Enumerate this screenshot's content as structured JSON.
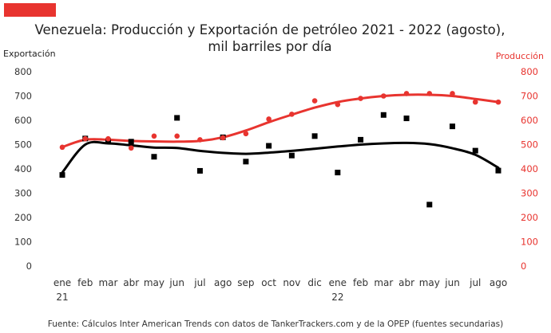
{
  "chart_data": {
    "type": "line",
    "title": "Venezuela: Producción y Exportación de petróleo 2021 - 2022 (agosto),",
    "subtitle": "mil barriles por día",
    "ylabel_left": "Exportación",
    "ylabel_right": "Producción",
    "ylim": [
      0,
      800
    ],
    "yticks": [
      0,
      100,
      200,
      300,
      400,
      500,
      600,
      700,
      800
    ],
    "categories": [
      "ene",
      "feb",
      "mar",
      "abr",
      "may",
      "jun",
      "jul",
      "ago",
      "sep",
      "oct",
      "nov",
      "dic",
      "ene",
      "feb",
      "mar",
      "abr",
      "may",
      "jun",
      "jul",
      "ago"
    ],
    "year_labels": [
      {
        "index": 0,
        "label": "21"
      },
      {
        "index": 12,
        "label": "22"
      }
    ],
    "series": [
      {
        "name": "Exportación",
        "axis": "left",
        "color": "#000000",
        "marker": "square",
        "values": [
          375,
          525,
          515,
          512,
          450,
          610,
          392,
          530,
          430,
          495,
          455,
          535,
          385,
          520,
          622,
          608,
          253,
          575,
          475,
          393
        ],
        "trend": [
          385,
          500,
          505,
          497,
          488,
          486,
          474,
          466,
          462,
          467,
          474,
          483,
          492,
          500,
          505,
          507,
          502,
          485,
          458,
          405
        ]
      },
      {
        "name": "Producción",
        "axis": "right",
        "color": "#e8342f",
        "marker": "circle",
        "values": [
          489,
          524,
          524,
          486,
          535,
          535,
          520,
          528,
          545,
          605,
          625,
          680,
          665,
          690,
          700,
          710,
          710,
          710,
          675,
          675
        ],
        "trend": [
          490,
          520,
          520,
          515,
          513,
          512,
          515,
          530,
          558,
          592,
          623,
          652,
          675,
          690,
          700,
          705,
          705,
          700,
          688,
          675
        ]
      }
    ],
    "grid": false,
    "legend": "none"
  },
  "footer": "Fuente: Cálculos Inter American Trends con datos de TankerTrackers.com y de la OPEP (fuentes secundarias)",
  "colors": {
    "brand_bar": "#e8342f",
    "production": "#e8342f",
    "export": "#000000"
  }
}
